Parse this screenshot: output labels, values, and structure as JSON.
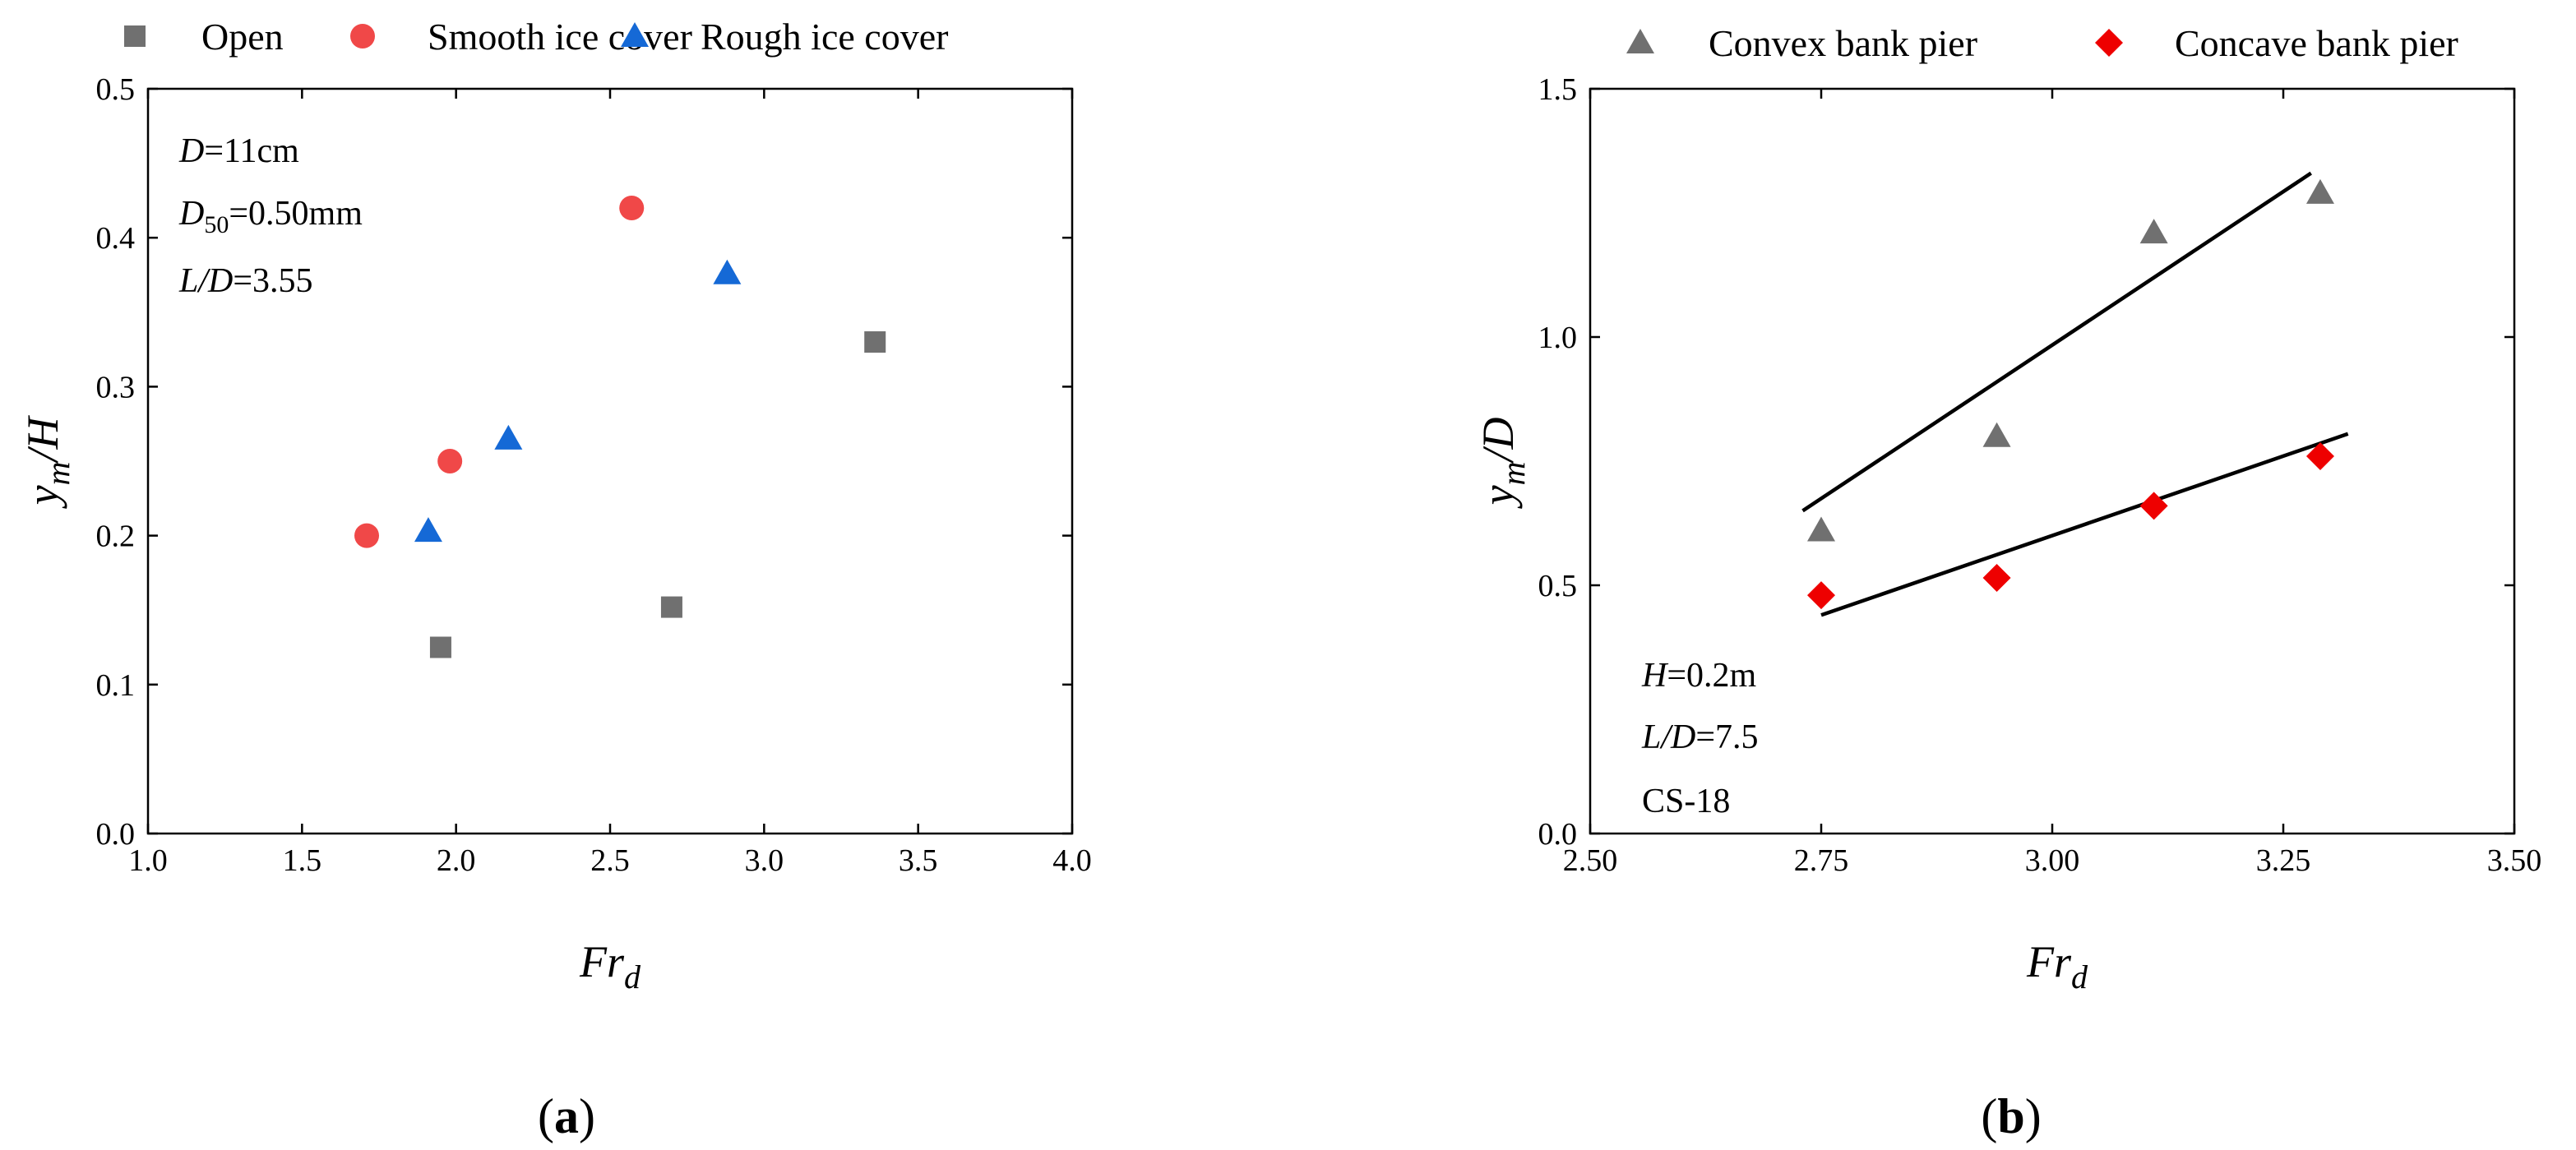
{
  "colors": {
    "open": "#707070",
    "smooth": "#f04848",
    "rough": "#1569d6",
    "convex": "#707070",
    "concave": "#ee0000",
    "fit_line": "#000000"
  },
  "chart_data": [
    {
      "type": "scatter",
      "panel_label": {
        "open": "(",
        "letter": "a",
        "close": ")"
      },
      "xlabel": {
        "main": "Fr",
        "sub": "d"
      },
      "ylabel": {
        "main": "y",
        "sub": "m",
        "rest": "/H"
      },
      "xlim": [
        1.0,
        4.0
      ],
      "ylim": [
        0.0,
        0.5
      ],
      "xticks": [
        "1.0",
        "1.5",
        "2.0",
        "2.5",
        "3.0",
        "3.5",
        "4.0"
      ],
      "yticks": [
        "0.0",
        "0.1",
        "0.2",
        "0.3",
        "0.4",
        "0.5"
      ],
      "annotations": [
        {
          "ital": "D",
          "sub": "",
          "rest": "=11cm"
        },
        {
          "ital": "D",
          "sub": "50",
          "rest": "=0.50mm"
        },
        {
          "ital": "L/D",
          "sub": "",
          "rest": "=3.55"
        }
      ],
      "series": [
        {
          "name": "Open",
          "marker": "square",
          "color_key": "open",
          "points": [
            [
              1.95,
              0.125
            ],
            [
              2.7,
              0.152
            ],
            [
              3.36,
              0.33
            ]
          ]
        },
        {
          "name": "Smooth ice cover",
          "marker": "circle",
          "color_key": "smooth",
          "points": [
            [
              1.71,
              0.2
            ],
            [
              1.98,
              0.25
            ],
            [
              2.57,
              0.42
            ]
          ]
        },
        {
          "name": "Rough ice cover",
          "marker": "triangle",
          "color_key": "rough",
          "points": [
            [
              1.91,
              0.203
            ],
            [
              2.17,
              0.265
            ],
            [
              2.88,
              0.376
            ]
          ]
        }
      ]
    },
    {
      "type": "scatter",
      "panel_label": {
        "open": "(",
        "letter": "b",
        "close": ")"
      },
      "xlabel": {
        "main": "Fr",
        "sub": "d"
      },
      "ylabel": {
        "main": "y",
        "sub": "m",
        "rest": "/D"
      },
      "xlim": [
        2.5,
        3.5
      ],
      "ylim": [
        0.0,
        1.5
      ],
      "xticks": [
        "2.50",
        "2.75",
        "3.00",
        "3.25",
        "3.50"
      ],
      "yticks": [
        "0.0",
        "0.5",
        "1.0",
        "1.5"
      ],
      "annotations": [
        {
          "ital": "H",
          "sub": "",
          "rest": "=0.2m"
        },
        {
          "ital": "L/D",
          "sub": "",
          "rest": "=7.5"
        },
        {
          "ital": "",
          "sub": "",
          "rest": "CS-18"
        }
      ],
      "series": [
        {
          "name": "Convex bank pier",
          "marker": "triangle",
          "color_key": "convex",
          "points": [
            [
              2.75,
              0.61
            ],
            [
              2.94,
              0.8
            ],
            [
              3.11,
              1.21
            ],
            [
              3.29,
              1.29
            ]
          ],
          "fit_line": [
            [
              2.73,
              0.65
            ],
            [
              3.28,
              1.33
            ]
          ]
        },
        {
          "name": "Concave bank pier",
          "marker": "diamond",
          "color_key": "concave",
          "points": [
            [
              2.75,
              0.48
            ],
            [
              2.94,
              0.515
            ],
            [
              3.11,
              0.66
            ],
            [
              3.29,
              0.76
            ]
          ],
          "fit_line": [
            [
              2.75,
              0.44
            ],
            [
              3.32,
              0.805
            ]
          ]
        }
      ]
    }
  ]
}
